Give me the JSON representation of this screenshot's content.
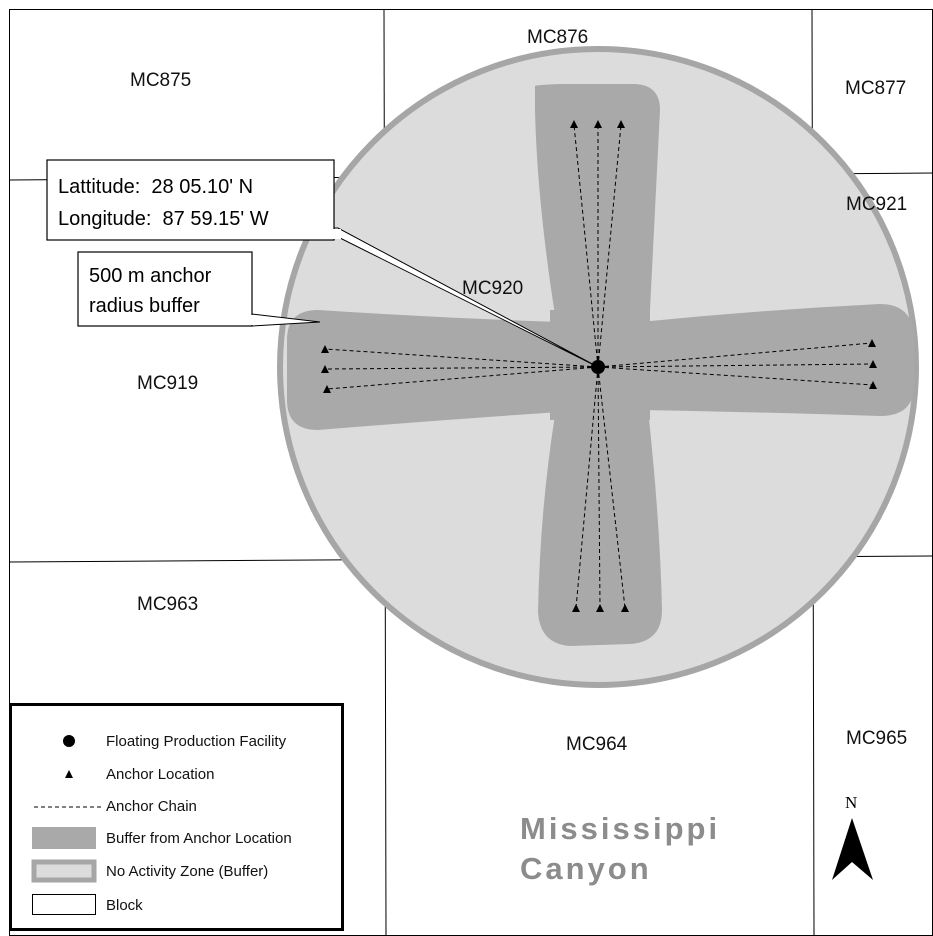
{
  "blocks": {
    "mc875": "MC875",
    "mc876": "MC876",
    "mc877": "MC877",
    "mc919": "MC919",
    "mc920": "MC920",
    "mc921": "MC921",
    "mc963": "MC963",
    "mc964": "MC964",
    "mc965": "MC965"
  },
  "coordinate_callout": {
    "line1": "Lattitude:  28 05.10' N",
    "line2": "Longitude:  87 59.15' W"
  },
  "buffer_callout": {
    "line1": "500 m anchor",
    "line2": "radius buffer"
  },
  "region": {
    "line1": "Mississippi",
    "line2": "Canyon"
  },
  "north_arrow": {
    "label": "N",
    "icon": "north-arrow-icon"
  },
  "legend": [
    {
      "symbol": "facility-dot-icon",
      "label": "Floating Production Facility"
    },
    {
      "symbol": "anchor-triangle-icon",
      "label": "Anchor Location"
    },
    {
      "symbol": "dashed-line-icon",
      "label": "Anchor Chain"
    },
    {
      "symbol": "dark-gray-fill-icon",
      "label": "Buffer from Anchor Location"
    },
    {
      "symbol": "light-gray-outlined-fill-icon",
      "label": "No Activity Zone (Buffer)"
    },
    {
      "symbol": "white-outlined-box-icon",
      "label": "Block"
    }
  ],
  "colors": {
    "no_activity_fill": "#dcdcdc",
    "no_activity_outline": "#a6a6a6",
    "anchor_buffer_fill": "#a9a9a9",
    "block_line": "#000000",
    "region_text": "#8c8c8c"
  }
}
